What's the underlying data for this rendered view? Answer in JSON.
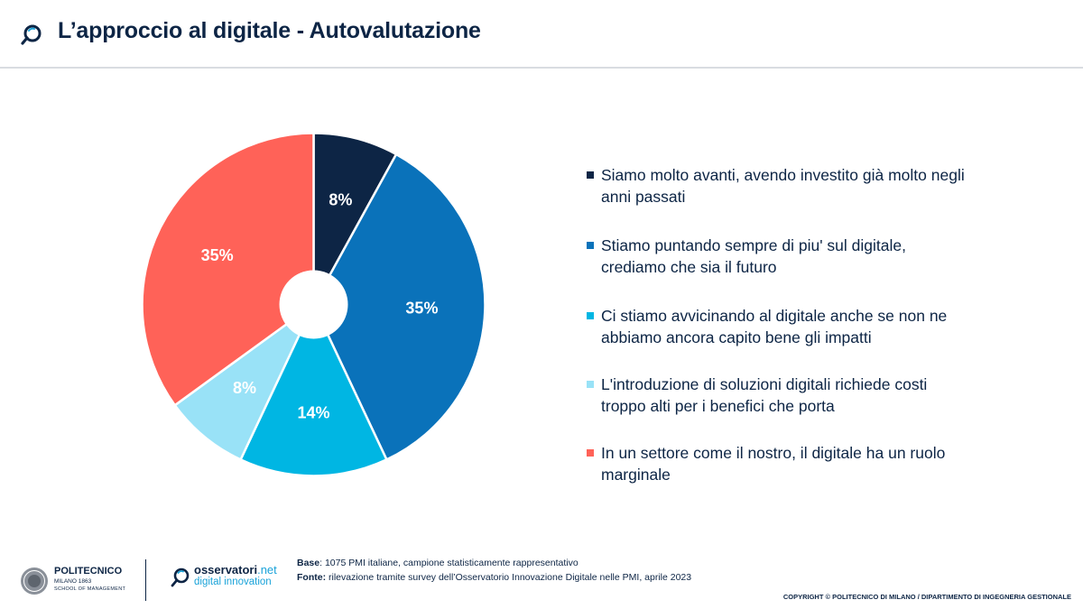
{
  "header": {
    "title": "L’approccio al digitale - Autovalutazione",
    "icon": "magnifier-logo-icon"
  },
  "colors": {
    "navy": "#0d2545",
    "blue": "#0a72ba",
    "cyan": "#00b6e3",
    "light_blue": "#99e2f7",
    "coral": "#ff6258"
  },
  "chart_data": {
    "type": "pie",
    "donut": true,
    "title": "",
    "categories": [
      "Siamo molto avanti, avendo investito già molto negli anni passati",
      "Stiamo puntando sempre di piu' sul digitale, crediamo che sia il futuro",
      "Ci stiamo avvicinando al digitale anche se non ne abbiamo ancora capito bene gli impatti",
      "L'introduzione di soluzioni digitali richiede costi troppo alti per i benefici che porta",
      "In un settore come il nostro, il digitale ha un ruolo marginale"
    ],
    "values": [
      8,
      35,
      14,
      8,
      35
    ],
    "labels": [
      "8%",
      "35%",
      "14%",
      "8%",
      "35%"
    ],
    "colors": [
      "#0d2545",
      "#0a72ba",
      "#00b6e3",
      "#99e2f7",
      "#ff6258"
    ],
    "legend_position": "right"
  },
  "legend": {
    "items": [
      "Siamo molto avanti, avendo investito già molto negli anni passati",
      "Stiamo puntando sempre di piu' sul digitale, crediamo che sia il futuro",
      "Ci stiamo avvicinando al digitale anche se non ne abbiamo ancora capito bene gli impatti",
      "L'introduzione di soluzioni digitali richiede costi troppo alti per i benefici che porta",
      "In un settore come il nostro, il digitale ha un ruolo marginale"
    ]
  },
  "footer": {
    "polimi_name": "POLITECNICO",
    "polimi_sub": "MILANO 1863",
    "polimi_school": "SCHOOL OF MANAGEMENT",
    "oss_name": "osservatori",
    "oss_net": ".net",
    "oss_tag": "digital innovation",
    "base_label": "Base",
    "base_text": ": 1075 PMI italiane,  campione statisticamente rappresentativo",
    "fonte_label": "Fonte:",
    "fonte_text": " rilevazione tramite survey dell’Osservatorio Innovazione Digitale nelle PMI, aprile 2023",
    "copyright": "COPYRIGHT © POLITECNICO DI MILANO / DIPARTIMENTO DI INGEGNERIA GESTIONALE"
  }
}
